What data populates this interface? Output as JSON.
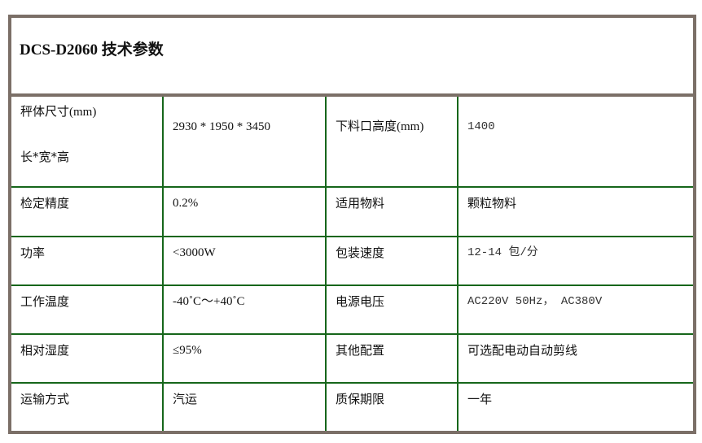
{
  "title": "DCS-D2060 技术参数",
  "rows": [
    {
      "label1": "秤体尺寸(mm)",
      "label1b": "长*宽*高",
      "value1": "2930 * 1950 * 3450",
      "label2": "下料口高度(mm)",
      "value2": "1400"
    },
    {
      "label1": "检定精度",
      "value1": "0.2%",
      "label2": "适用物料",
      "value2": "颗粒物料"
    },
    {
      "label1": "功率",
      "value1": "<3000W",
      "label2": "包装速度",
      "value2": "12-14 包/分"
    },
    {
      "label1": "工作温度",
      "value1": "-40˚C～+40˚C",
      "label2": "电源电压",
      "value2": "AC220V 50Hz， AC380V"
    },
    {
      "label1": "相对湿度",
      "value1": "≤95%",
      "label2": "其他配置",
      "value2": "可选配电动自动剪线"
    },
    {
      "label1": "运输方式",
      "value1": "汽运",
      "label2": "质保期限",
      "value2": "一年"
    }
  ]
}
